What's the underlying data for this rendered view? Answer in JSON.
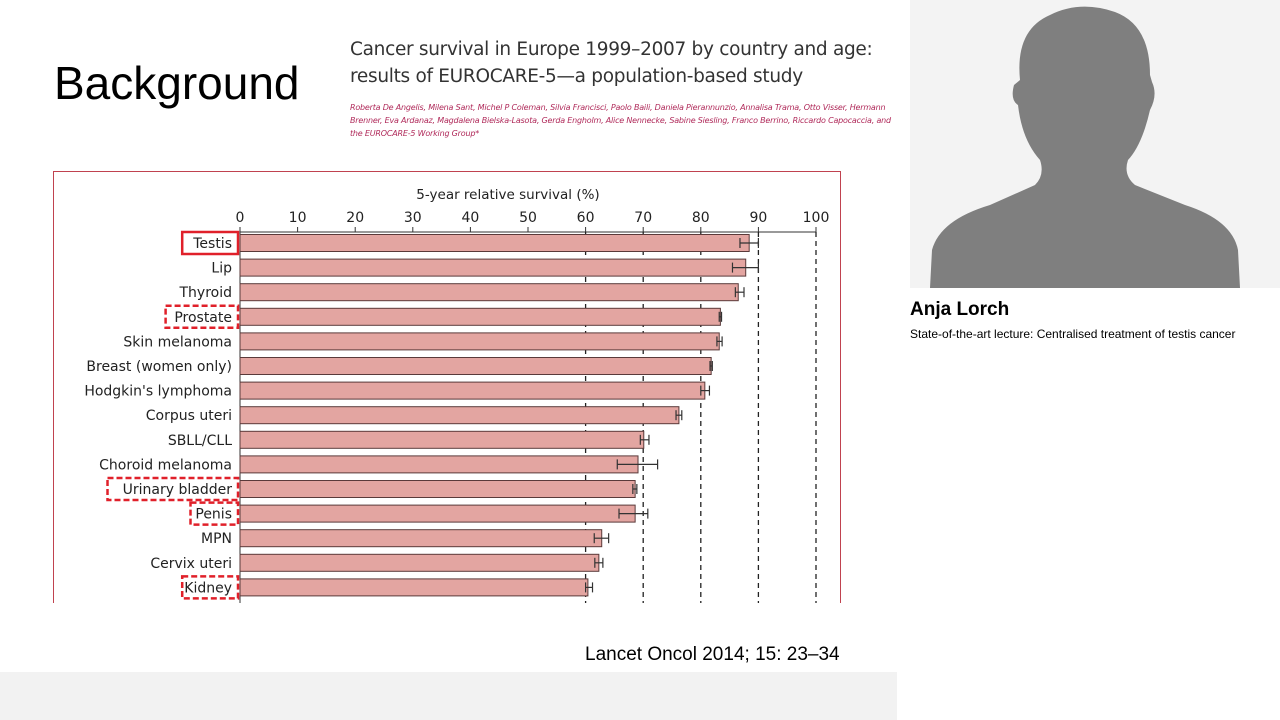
{
  "slide": {
    "title": "Background",
    "paper_title_line1": "Cancer survival in Europe 1999–2007 by country and age:",
    "paper_title_line2": "results of EUROCARE-5—a population-based study",
    "authors": "Roberta De Angelis, Milena Sant, Michel P Coleman, Silvia Francisci, Paolo Baili, Daniela Pierannunzio, Annalisa Trama, Otto Visser, Hermann Brenner, Eva Ardanaz, Magdalena Bielska-Lasota, Gerda Engholm, Alice Nennecke, Sabine Siesling, Franco Berrino, Riccardo Capocaccia, and the EUROCARE-5 Working Group*",
    "citation": "Lancet Oncol 2014; 15: 23–34"
  },
  "speaker": {
    "name": "Anja Lorch",
    "talk": "State-of-the-art lecture: Centralised treatment of testis cancer"
  },
  "colors": {
    "bar": "#e3a5a1",
    "highlight": "#e0202a",
    "frame": "#c0424f",
    "authors": "#b02a5a"
  },
  "chart_data": {
    "type": "bar",
    "orientation": "horizontal",
    "title": "5-year relative survival (%)",
    "xlim": [
      0,
      100
    ],
    "xticks": [
      "0",
      "10",
      "20",
      "30",
      "40",
      "50",
      "60",
      "70",
      "80",
      "90",
      "100"
    ],
    "dashed_gridlines": [
      60,
      70,
      80,
      90,
      100
    ],
    "categories": [
      "Testis",
      "Lip",
      "Thyroid",
      "Prostate",
      "Skin melanoma",
      "Breast (women only)",
      "Hodgkin's lymphoma",
      "Corpus uteri",
      "SBLL/CLL",
      "Choroid melanoma",
      "Urinary bladder",
      "Penis",
      "MPN",
      "Cervix uteri",
      "Kidney"
    ],
    "values": [
      88.4,
      87.8,
      86.5,
      83.4,
      83.2,
      81.8,
      80.7,
      76.2,
      70.1,
      69.1,
      68.6,
      68.6,
      62.8,
      62.3,
      60.4
    ],
    "ci_low": [
      86.8,
      85.5,
      86.0,
      83.2,
      82.8,
      81.6,
      80.0,
      75.7,
      69.5,
      65.5,
      68.2,
      65.8,
      61.5,
      61.6,
      60.0
    ],
    "ci_high": [
      90.0,
      90.0,
      87.5,
      83.6,
      83.7,
      82.0,
      81.5,
      76.7,
      71.0,
      72.5,
      68.9,
      70.8,
      64.0,
      63.0,
      61.2
    ],
    "highlight_solid": [
      "Testis"
    ],
    "highlight_dashed": [
      "Prostate",
      "Urinary bladder",
      "Penis",
      "Kidney"
    ]
  }
}
